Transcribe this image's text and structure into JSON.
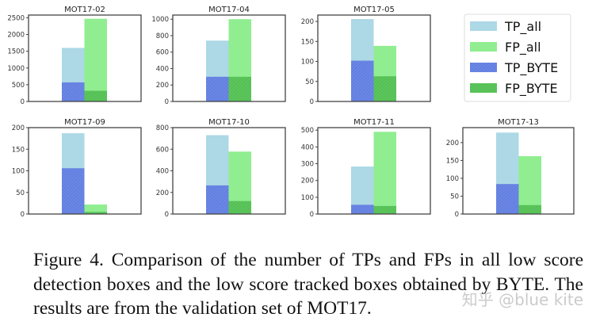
{
  "chart_data": {
    "type": "bar",
    "stacking": "overlay",
    "legend": {
      "placement": "top-right",
      "entries": [
        "TP_all",
        "FP_all",
        "TP_BYTE",
        "FP_BYTE"
      ]
    },
    "colors": {
      "TP_all": "#add8e6",
      "FP_all": "#90ee90",
      "TP_BYTE": "#6b87e4",
      "FP_BYTE": "#5cc65c"
    },
    "hatched": [
      "TP_BYTE",
      "FP_BYTE"
    ],
    "grid": false,
    "subplots": [
      {
        "title": "MOT17-02",
        "ylim": [
          0,
          2580
        ],
        "yticks": [
          0,
          500,
          1000,
          1500,
          2000,
          2500
        ],
        "TP_all": 1600,
        "FP_all": 2470,
        "TP_BYTE": 570,
        "FP_BYTE": 320
      },
      {
        "title": "MOT17-04",
        "ylim": [
          0,
          1050
        ],
        "yticks": [
          0,
          200,
          400,
          600,
          800,
          1000
        ],
        "TP_all": 740,
        "FP_all": 1000,
        "TP_BYTE": 300,
        "FP_BYTE": 300
      },
      {
        "title": "MOT17-05",
        "ylim": [
          0,
          216
        ],
        "yticks": [
          0,
          50,
          100,
          150,
          200
        ],
        "TP_all": 206,
        "FP_all": 139,
        "TP_BYTE": 102,
        "FP_BYTE": 63
      },
      {
        "title": "MOT17-09",
        "ylim": [
          0,
          200
        ],
        "yticks": [
          0,
          50,
          100,
          150,
          200
        ],
        "TP_all": 187,
        "FP_all": 22,
        "TP_BYTE": 106,
        "FP_BYTE": 5
      },
      {
        "title": "MOT17-10",
        "ylim": [
          0,
          800
        ],
        "yticks": [
          0,
          200,
          400,
          600,
          800
        ],
        "TP_all": 730,
        "FP_all": 578,
        "TP_BYTE": 265,
        "FP_BYTE": 120
      },
      {
        "title": "MOT17-11",
        "ylim": [
          0,
          515
        ],
        "yticks": [
          0,
          100,
          200,
          300,
          400,
          500
        ],
        "TP_all": 283,
        "FP_all": 490,
        "TP_BYTE": 55,
        "FP_BYTE": 48
      },
      {
        "title": "MOT17-13",
        "ylim": [
          0,
          242
        ],
        "yticks": [
          0,
          50,
          100,
          150,
          200
        ],
        "TP_all": 228,
        "FP_all": 162,
        "TP_BYTE": 84,
        "FP_BYTE": 25
      }
    ]
  },
  "caption": "Figure 4.  Comparison of the number of TPs and FPs in all low score detection boxes and the low score tracked boxes obtained by BYTE. The results are from the validation set of MOT17.",
  "watermark": "知乎 @blue kite"
}
